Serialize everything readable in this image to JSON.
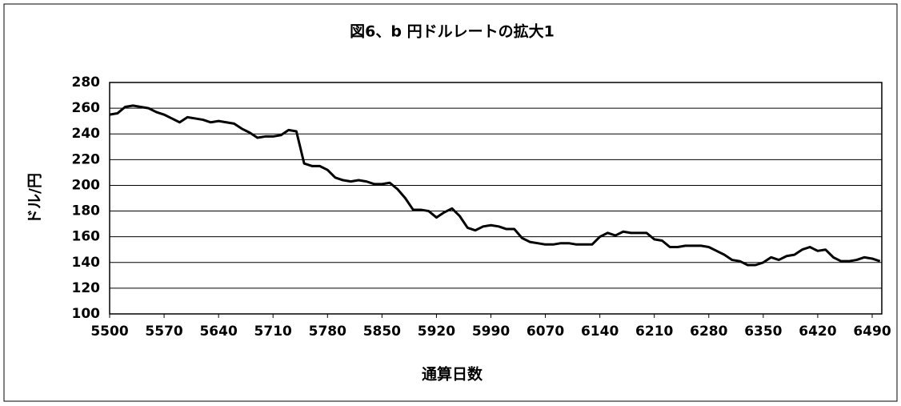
{
  "chart_data": {
    "type": "line",
    "title": "図6、b 円ドルレートの拡大1",
    "x_label": "通算日数",
    "y_label": "ドル/円",
    "categories": [
      "5500",
      null,
      null,
      null,
      null,
      null,
      null,
      "5570",
      null,
      null,
      null,
      null,
      null,
      null,
      "5640",
      null,
      null,
      null,
      null,
      null,
      null,
      "5710",
      null,
      null,
      null,
      null,
      null,
      null,
      "5780",
      null,
      null,
      null,
      null,
      null,
      null,
      "5850",
      null,
      null,
      null,
      null,
      null,
      null,
      "5920",
      null,
      null,
      null,
      null,
      null,
      null,
      "5990",
      null,
      null,
      null,
      null,
      null,
      null,
      "6070",
      null,
      null,
      null,
      null,
      null,
      null,
      "6140",
      null,
      null,
      null,
      null,
      null,
      null,
      "6210",
      null,
      null,
      null,
      null,
      null,
      null,
      "6280",
      null,
      null,
      null,
      null,
      null,
      null,
      "6350",
      null,
      null,
      null,
      null,
      null,
      null,
      "6420",
      null,
      null,
      null,
      null,
      null,
      null,
      "6490",
      null
    ],
    "series": [
      {
        "name": "円ドルレート",
        "color": "#000000",
        "values": [
          255,
          256,
          261,
          262,
          261,
          260,
          257,
          255,
          252,
          249,
          253,
          252,
          251,
          249,
          250,
          249,
          248,
          244,
          241,
          237,
          238,
          238,
          239,
          243,
          242,
          217,
          215,
          215,
          212,
          206,
          204,
          203,
          204,
          203,
          201,
          201,
          202,
          197,
          190,
          181,
          181,
          180,
          175,
          179,
          182,
          176,
          167,
          165,
          168,
          169,
          168,
          166,
          166,
          159,
          156,
          155,
          154,
          154,
          155,
          155,
          154,
          154,
          154,
          160,
          163,
          161,
          164,
          163,
          163,
          163,
          158,
          157,
          152,
          152,
          153,
          153,
          153,
          152,
          149,
          146,
          142,
          141,
          138,
          138,
          140,
          144,
          142,
          145,
          146,
          150,
          152,
          149,
          150,
          144,
          141,
          141,
          142,
          144,
          143,
          141
        ]
      }
    ],
    "ylim": [
      100,
      280
    ],
    "yticks": [
      100,
      120,
      140,
      160,
      180,
      200,
      220,
      240,
      260,
      280
    ],
    "grid": true,
    "legend": false
  }
}
